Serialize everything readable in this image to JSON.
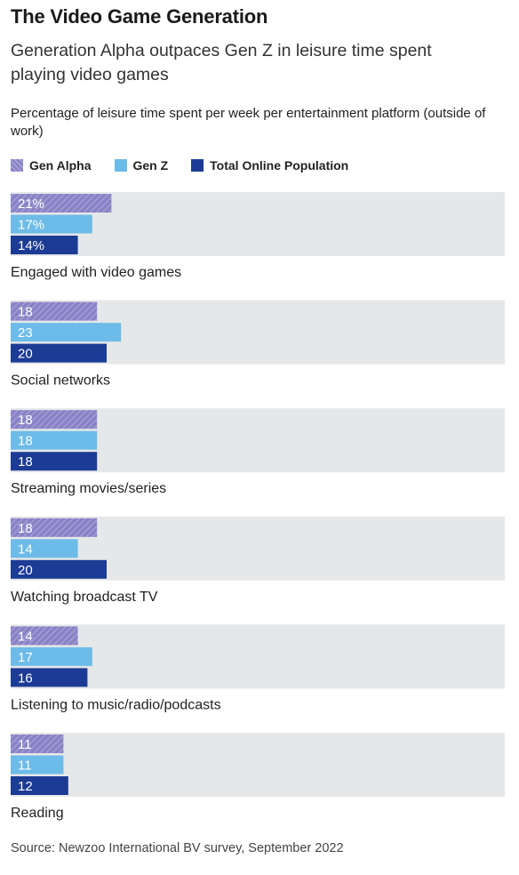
{
  "title": "The Video Game Generation",
  "subtitle": "Generation Alpha outpaces Gen Z in leisure time spent playing video games",
  "source": "Source: Newzoo International BV survey, September 2022",
  "colors": {
    "gen_alpha": "#8a82c6",
    "gen_z": "#6dbbe8",
    "total": "#1c3b94",
    "panel": "#e6e7e9"
  },
  "chart_data": {
    "type": "bar",
    "orientation": "horizontal",
    "ylabel": "Percentage of leisure time spent per week per entertainment platform (outside of work)",
    "categories": [
      "Engaged with video games",
      "Social networks",
      "Streaming movies/series",
      "Watching broadcast TV",
      "Listening to music/radio/podcasts",
      "Reading"
    ],
    "series": [
      {
        "name": "Gen Alpha",
        "values": [
          21,
          18,
          18,
          18,
          14,
          11
        ],
        "labels": [
          "21%",
          "18",
          "18",
          "18",
          "14",
          "11"
        ]
      },
      {
        "name": "Gen Z",
        "values": [
          17,
          23,
          18,
          14,
          17,
          11
        ],
        "labels": [
          "17%",
          "23",
          "18",
          "14",
          "17",
          "11"
        ]
      },
      {
        "name": "Total Online Population",
        "values": [
          14,
          20,
          18,
          20,
          16,
          12
        ],
        "labels": [
          "14%",
          "20",
          "18",
          "20",
          "16",
          "12"
        ]
      }
    ],
    "legend_position": "top-left",
    "grid": false
  }
}
